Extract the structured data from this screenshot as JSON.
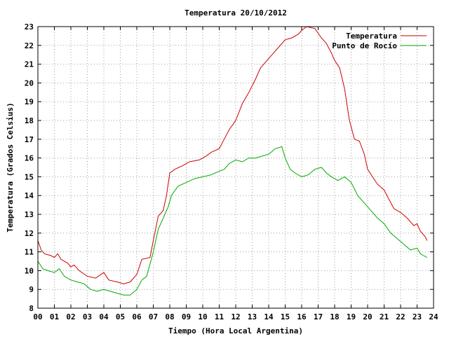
{
  "chart_data": {
    "type": "line",
    "title": "Temperatura 20/10/2012",
    "xlabel": "Tiempo (Hora Local Argentina)",
    "ylabel": "Temperatura (Grados Celsius)",
    "xlim": [
      0,
      24
    ],
    "ylim": [
      8,
      23
    ],
    "x_ticks": [
      "00",
      "01",
      "02",
      "03",
      "04",
      "05",
      "06",
      "07",
      "08",
      "09",
      "10",
      "11",
      "12",
      "13",
      "14",
      "15",
      "16",
      "17",
      "18",
      "19",
      "20",
      "21",
      "22",
      "23",
      "24"
    ],
    "y_ticks": [
      "8",
      "9",
      "10",
      "11",
      "12",
      "13",
      "14",
      "15",
      "16",
      "17",
      "18",
      "19",
      "20",
      "21",
      "22",
      "23"
    ],
    "grid": true,
    "legend_position": "top-right",
    "series": [
      {
        "name": "Temperatura",
        "color": "#cc0000",
        "points": [
          [
            0.0,
            11.6
          ],
          [
            0.2,
            11.1
          ],
          [
            0.4,
            10.9
          ],
          [
            0.8,
            10.8
          ],
          [
            1.0,
            10.7
          ],
          [
            1.2,
            10.9
          ],
          [
            1.4,
            10.6
          ],
          [
            1.8,
            10.4
          ],
          [
            2.0,
            10.2
          ],
          [
            2.2,
            10.3
          ],
          [
            2.5,
            10.0
          ],
          [
            3.0,
            9.7
          ],
          [
            3.5,
            9.6
          ],
          [
            4.0,
            9.9
          ],
          [
            4.3,
            9.5
          ],
          [
            4.8,
            9.4
          ],
          [
            5.2,
            9.3
          ],
          [
            5.6,
            9.4
          ],
          [
            6.0,
            9.8
          ],
          [
            6.3,
            10.6
          ],
          [
            6.8,
            10.7
          ],
          [
            7.0,
            11.6
          ],
          [
            7.3,
            12.9
          ],
          [
            7.6,
            13.2
          ],
          [
            7.8,
            14.0
          ],
          [
            8.0,
            15.2
          ],
          [
            8.3,
            15.4
          ],
          [
            8.8,
            15.6
          ],
          [
            9.2,
            15.8
          ],
          [
            9.8,
            15.9
          ],
          [
            10.2,
            16.1
          ],
          [
            10.5,
            16.3
          ],
          [
            11.0,
            16.5
          ],
          [
            11.3,
            17.0
          ],
          [
            11.6,
            17.5
          ],
          [
            12.0,
            18.0
          ],
          [
            12.4,
            18.9
          ],
          [
            12.8,
            19.5
          ],
          [
            13.2,
            20.2
          ],
          [
            13.5,
            20.8
          ],
          [
            13.8,
            21.1
          ],
          [
            14.2,
            21.5
          ],
          [
            14.6,
            21.9
          ],
          [
            15.0,
            22.3
          ],
          [
            15.4,
            22.4
          ],
          [
            15.8,
            22.6
          ],
          [
            16.0,
            22.8
          ],
          [
            16.3,
            23.0
          ],
          [
            16.8,
            22.9
          ],
          [
            17.2,
            22.4
          ],
          [
            17.5,
            22.1
          ],
          [
            17.8,
            21.6
          ],
          [
            18.0,
            21.2
          ],
          [
            18.3,
            20.8
          ],
          [
            18.6,
            19.7
          ],
          [
            18.9,
            18.0
          ],
          [
            19.2,
            17.0
          ],
          [
            19.5,
            16.9
          ],
          [
            19.8,
            16.2
          ],
          [
            20.0,
            15.4
          ],
          [
            20.3,
            15.0
          ],
          [
            20.6,
            14.6
          ],
          [
            21.0,
            14.3
          ],
          [
            21.3,
            13.8
          ],
          [
            21.6,
            13.3
          ],
          [
            22.0,
            13.1
          ],
          [
            22.4,
            12.8
          ],
          [
            22.8,
            12.4
          ],
          [
            23.0,
            12.5
          ],
          [
            23.2,
            12.1
          ],
          [
            23.5,
            11.8
          ],
          [
            23.6,
            11.6
          ]
        ]
      },
      {
        "name": "Punto de Rocío",
        "color": "#00aa00",
        "points": [
          [
            0.0,
            10.5
          ],
          [
            0.3,
            10.1
          ],
          [
            0.6,
            10.0
          ],
          [
            1.0,
            9.9
          ],
          [
            1.3,
            10.1
          ],
          [
            1.6,
            9.7
          ],
          [
            2.0,
            9.5
          ],
          [
            2.4,
            9.4
          ],
          [
            2.8,
            9.3
          ],
          [
            3.2,
            9.0
          ],
          [
            3.6,
            8.9
          ],
          [
            4.0,
            9.0
          ],
          [
            4.4,
            8.9
          ],
          [
            4.8,
            8.8
          ],
          [
            5.2,
            8.7
          ],
          [
            5.6,
            8.7
          ],
          [
            6.0,
            9.0
          ],
          [
            6.3,
            9.5
          ],
          [
            6.6,
            9.7
          ],
          [
            7.0,
            11.0
          ],
          [
            7.3,
            12.2
          ],
          [
            7.6,
            12.8
          ],
          [
            7.9,
            13.4
          ],
          [
            8.1,
            14.0
          ],
          [
            8.5,
            14.5
          ],
          [
            9.0,
            14.7
          ],
          [
            9.5,
            14.9
          ],
          [
            10.0,
            15.0
          ],
          [
            10.5,
            15.1
          ],
          [
            11.0,
            15.3
          ],
          [
            11.3,
            15.4
          ],
          [
            11.6,
            15.7
          ],
          [
            12.0,
            15.9
          ],
          [
            12.4,
            15.8
          ],
          [
            12.8,
            16.0
          ],
          [
            13.2,
            16.0
          ],
          [
            13.6,
            16.1
          ],
          [
            14.0,
            16.2
          ],
          [
            14.4,
            16.5
          ],
          [
            14.8,
            16.6
          ],
          [
            15.0,
            16.0
          ],
          [
            15.3,
            15.4
          ],
          [
            15.6,
            15.2
          ],
          [
            16.0,
            15.0
          ],
          [
            16.4,
            15.1
          ],
          [
            16.8,
            15.4
          ],
          [
            17.2,
            15.5
          ],
          [
            17.5,
            15.2
          ],
          [
            17.8,
            15.0
          ],
          [
            18.2,
            14.8
          ],
          [
            18.6,
            15.0
          ],
          [
            19.0,
            14.7
          ],
          [
            19.4,
            14.0
          ],
          [
            19.8,
            13.6
          ],
          [
            20.2,
            13.2
          ],
          [
            20.6,
            12.8
          ],
          [
            21.0,
            12.5
          ],
          [
            21.4,
            12.0
          ],
          [
            21.8,
            11.7
          ],
          [
            22.2,
            11.4
          ],
          [
            22.6,
            11.1
          ],
          [
            23.0,
            11.2
          ],
          [
            23.2,
            10.9
          ],
          [
            23.4,
            10.8
          ],
          [
            23.6,
            10.7
          ]
        ]
      }
    ]
  }
}
